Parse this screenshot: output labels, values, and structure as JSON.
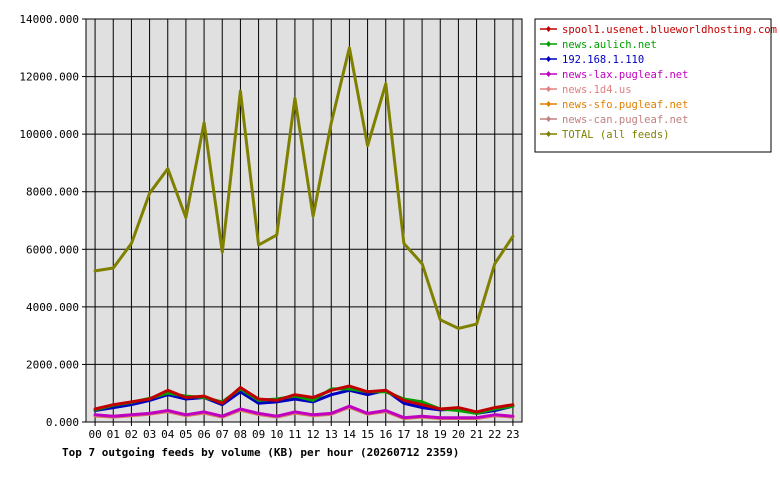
{
  "chart_data": {
    "type": "line",
    "title": "Top 7 outgoing feeds by volume (KB) per hour (20260712 2359)",
    "xlabel": "",
    "ylabel": "",
    "x": [
      "00",
      "01",
      "02",
      "03",
      "04",
      "05",
      "06",
      "07",
      "08",
      "09",
      "10",
      "11",
      "12",
      "13",
      "14",
      "15",
      "16",
      "17",
      "18",
      "19",
      "20",
      "21",
      "22",
      "23"
    ],
    "ylim": [
      0,
      14000
    ],
    "yticks": [
      "0.000",
      "2000.000",
      "4000.000",
      "6000.000",
      "8000.000",
      "10000.000",
      "12000.000",
      "14000.000"
    ],
    "ytick_values": [
      0,
      2000,
      4000,
      6000,
      8000,
      10000,
      12000,
      14000
    ],
    "grid": true,
    "legend_position": "right",
    "series": [
      {
        "name": "spool1.usenet.blueworldhosting.com",
        "color": "#c00000",
        "values": [
          450,
          600,
          700,
          800,
          1100,
          850,
          900,
          650,
          1200,
          800,
          750,
          950,
          850,
          1100,
          1250,
          1050,
          1100,
          750,
          600,
          450,
          500,
          350,
          500,
          600
        ]
      },
      {
        "name": "news.aulich.net",
        "color": "#00a000",
        "values": [
          420,
          580,
          680,
          820,
          1000,
          900,
          850,
          700,
          1150,
          750,
          800,
          900,
          750,
          1150,
          1150,
          1050,
          1050,
          800,
          700,
          450,
          400,
          300,
          450,
          550
        ]
      },
      {
        "name": "192.168.1.110",
        "color": "#0000c0",
        "values": [
          400,
          500,
          600,
          750,
          950,
          800,
          850,
          600,
          1050,
          650,
          700,
          800,
          700,
          950,
          1100,
          950,
          1100,
          650,
          500,
          420,
          450,
          300,
          400,
          550
        ]
      },
      {
        "name": "news-lax.pugleaf.net",
        "color": "#c000c0",
        "values": [
          250,
          200,
          250,
          300,
          400,
          250,
          350,
          200,
          450,
          300,
          200,
          350,
          250,
          300,
          550,
          300,
          400,
          150,
          200,
          150,
          150,
          150,
          250,
          200
        ]
      },
      {
        "name": "news.1d4.us",
        "color": "#e08080",
        "values": [
          230,
          190,
          240,
          290,
          380,
          240,
          330,
          190,
          430,
          280,
          190,
          330,
          240,
          290,
          530,
          290,
          380,
          140,
          190,
          140,
          140,
          140,
          240,
          190
        ]
      },
      {
        "name": "news-sfo.pugleaf.net",
        "color": "#e08000",
        "values": [
          220,
          180,
          230,
          280,
          370,
          230,
          320,
          180,
          420,
          270,
          180,
          320,
          230,
          280,
          520,
          280,
          370,
          130,
          180,
          130,
          130,
          130,
          230,
          180
        ]
      },
      {
        "name": "news-can.pugleaf.net",
        "color": "#c08080",
        "values": [
          210,
          170,
          220,
          270,
          360,
          220,
          310,
          170,
          410,
          260,
          170,
          310,
          220,
          270,
          510,
          270,
          360,
          120,
          170,
          120,
          120,
          120,
          220,
          170
        ]
      },
      {
        "name": "TOTAL (all feeds)",
        "color": "#808000",
        "values": [
          5250,
          5350,
          6200,
          7950,
          8800,
          7100,
          10400,
          5900,
          11500,
          6150,
          6500,
          11250,
          7150,
          10400,
          13000,
          9600,
          11750,
          6200,
          5500,
          3550,
          3250,
          3400,
          5500,
          6450
        ]
      }
    ]
  }
}
